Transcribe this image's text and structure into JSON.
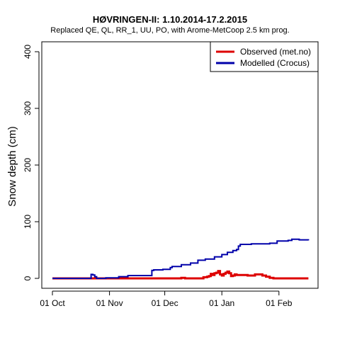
{
  "chart_data": {
    "type": "line",
    "title": "HØVRINGEN-II: 1.10.2014-17.2.2015",
    "subtitle": "Replaced QE, QL, RR_1, UU, PO,  with Arome-MetCoop 2.5 km prog.",
    "xlabel": "",
    "ylabel": "Snow depth (cm)",
    "ylim": [
      0,
      400
    ],
    "yticks": [
      "0",
      "100",
      "200",
      "300",
      "400"
    ],
    "xticks": [
      "01 Oct",
      "01 Nov",
      "01 Dec",
      "01 Jan",
      "01 Feb"
    ],
    "xtick_days": [
      0,
      31,
      61,
      92,
      123
    ],
    "xlim_days": [
      0,
      139
    ],
    "grid": false,
    "legend_position": "top-right",
    "series": [
      {
        "name": "Observed (met.no)",
        "color": "#dd0000",
        "points": [
          [
            0,
            0
          ],
          [
            68,
            0
          ],
          [
            70,
            1
          ],
          [
            72,
            0
          ],
          [
            80,
            0
          ],
          [
            82,
            2
          ],
          [
            84,
            3
          ],
          [
            85,
            4
          ],
          [
            86,
            8
          ],
          [
            87,
            6
          ],
          [
            88,
            9
          ],
          [
            89,
            10
          ],
          [
            90,
            13
          ],
          [
            91,
            7
          ],
          [
            92,
            5
          ],
          [
            93,
            8
          ],
          [
            94,
            10
          ],
          [
            95,
            12
          ],
          [
            96,
            9
          ],
          [
            97,
            4
          ],
          [
            98,
            5
          ],
          [
            99,
            7
          ],
          [
            100,
            6
          ],
          [
            104,
            6
          ],
          [
            106,
            5
          ],
          [
            110,
            7
          ],
          [
            114,
            5
          ],
          [
            116,
            3
          ],
          [
            118,
            1
          ],
          [
            120,
            0
          ],
          [
            139,
            0
          ]
        ]
      },
      {
        "name": "Modelled (Crocus)",
        "color": "#0000aa",
        "points": [
          [
            0,
            0
          ],
          [
            20,
            0
          ],
          [
            21,
            7
          ],
          [
            22,
            6
          ],
          [
            23,
            3
          ],
          [
            24,
            0
          ],
          [
            28,
            0
          ],
          [
            29,
            1
          ],
          [
            31,
            1
          ],
          [
            35,
            1
          ],
          [
            36,
            3
          ],
          [
            40,
            3
          ],
          [
            41,
            5
          ],
          [
            46,
            5
          ],
          [
            54,
            14
          ],
          [
            55,
            15
          ],
          [
            60,
            16
          ],
          [
            64,
            19
          ],
          [
            65,
            21
          ],
          [
            70,
            24
          ],
          [
            75,
            27
          ],
          [
            79,
            32
          ],
          [
            83,
            34
          ],
          [
            88,
            38
          ],
          [
            92,
            42
          ],
          [
            95,
            46
          ],
          [
            98,
            49
          ],
          [
            100,
            51
          ],
          [
            101,
            57
          ],
          [
            102,
            60
          ],
          [
            108,
            61
          ],
          [
            118,
            62
          ],
          [
            122,
            66
          ],
          [
            126,
            66
          ],
          [
            128,
            67
          ],
          [
            130,
            69
          ],
          [
            134,
            68
          ],
          [
            139,
            67
          ]
        ]
      }
    ]
  }
}
